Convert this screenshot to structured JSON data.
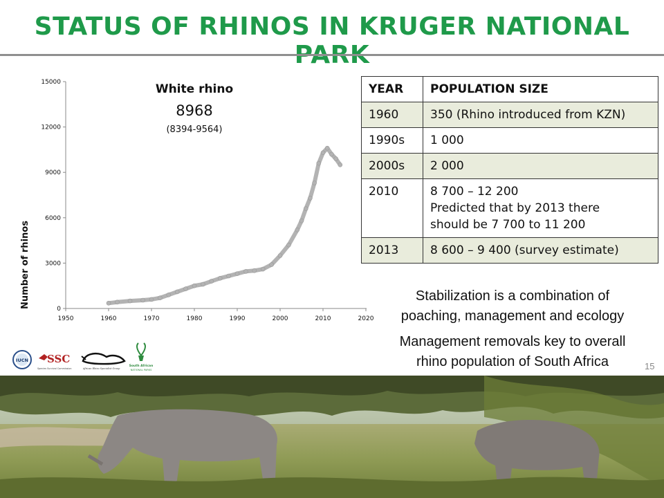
{
  "title": "STATUS OF RHINOS IN KRUGER NATIONAL PARK",
  "page_number": "15",
  "chart_data": {
    "type": "scatter",
    "title": "White rhino",
    "annotation_value": "8968",
    "annotation_range": "(8394-9564)",
    "xlabel": "",
    "ylabel": "Number of rhinos",
    "xlim": [
      1950,
      2020
    ],
    "ylim": [
      0,
      15000
    ],
    "x_ticks": [
      "1950",
      "1960",
      "1970",
      "1980",
      "1990",
      "2000",
      "2010",
      "2020"
    ],
    "y_ticks": [
      "0",
      "3000",
      "6000",
      "9000",
      "12000",
      "15000"
    ],
    "grid": false,
    "series": [
      {
        "color": "#b3b3b3",
        "x": [
          1960,
          1962,
          1965,
          1968,
          1970,
          1972,
          1974,
          1976,
          1978,
          1980,
          1982,
          1984,
          1986,
          1988,
          1990,
          1992,
          1994,
          1996,
          1998,
          2000,
          2002,
          2004,
          2005,
          2006,
          2007,
          2008,
          2009,
          2010,
          2011,
          2012,
          2013,
          2014
        ],
        "y": [
          350,
          420,
          500,
          550,
          600,
          700,
          900,
          1100,
          1300,
          1500,
          1600,
          1800,
          2000,
          2150,
          2300,
          2450,
          2500,
          2600,
          2900,
          3500,
          4200,
          5200,
          5800,
          6600,
          7300,
          8300,
          9600,
          10300,
          10600,
          10200,
          9900,
          9500
        ]
      }
    ]
  },
  "table": {
    "headers": [
      "YEAR",
      "POPULATION SIZE"
    ],
    "rows": [
      {
        "year": "1960",
        "size": "350 (Rhino introduced from KZN)"
      },
      {
        "year": "1990s",
        "size": "1 000"
      },
      {
        "year": "2000s",
        "size": "2 000"
      },
      {
        "year": "2010",
        "size": "8 700 – 12 200",
        "line2": "Predicted that by 2013 there",
        "line3": "should be 7 700 to 11 200"
      },
      {
        "year": "2013",
        "size": "8 600 – 9 400 (survey estimate)"
      }
    ]
  },
  "notes": [
    {
      "line1": "Stabilization is a combination of",
      "line2": "poaching, management and ecology"
    },
    {
      "line1": "Management removals key to overall",
      "line2": "rhino population of South Africa"
    }
  ],
  "logos": {
    "iucn": "IUCN",
    "ssc": "SSC",
    "ssc_caption": "Species Survival Commission",
    "afrsg_caption": "African Rhino Specialist Group",
    "sanparks_line1": "South African",
    "sanparks_line2": "NATIONAL PARKS"
  },
  "colors": {
    "title_green": "#1f9a4a",
    "rule_gray": "#8f8f8f",
    "table_shade": "#e9ecdc",
    "marker_gray": "#b3b3b3"
  }
}
